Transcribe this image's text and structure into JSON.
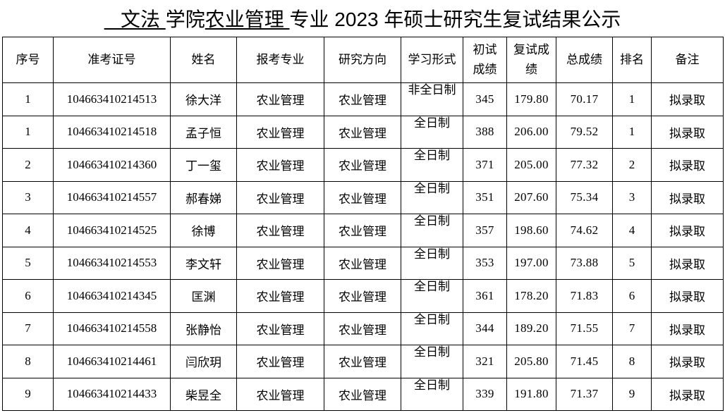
{
  "title": {
    "college": "   文法 ",
    "college_suffix": "学院",
    "major": "农业管理 ",
    "rest": "专业 2023 年硕士研究生复试结果公示"
  },
  "table": {
    "headers": [
      "序号",
      "准考证号",
      "姓名",
      "报考专业",
      "研究方向",
      "学习形式",
      "初试成绩",
      "复试成绩",
      "总成绩",
      "排名",
      "备注"
    ],
    "rows": [
      [
        "1",
        "104663410214513",
        "徐大洋",
        "农业管理",
        "农业管理",
        "非全日制",
        "345",
        "179.80",
        "70.17",
        "1",
        "拟录取"
      ],
      [
        "1",
        "104663410214518",
        "孟子恒",
        "农业管理",
        "农业管理",
        "全日制",
        "388",
        "206.00",
        "79.52",
        "1",
        "拟录取"
      ],
      [
        "2",
        "104663410214360",
        "丁一玺",
        "农业管理",
        "农业管理",
        "全日制",
        "371",
        "205.00",
        "77.32",
        "2",
        "拟录取"
      ],
      [
        "3",
        "104663410214557",
        "郝春娣",
        "农业管理",
        "农业管理",
        "全日制",
        "351",
        "207.60",
        "75.34",
        "3",
        "拟录取"
      ],
      [
        "4",
        "104663410214525",
        "徐博",
        "农业管理",
        "农业管理",
        "全日制",
        "357",
        "198.60",
        "74.62",
        "4",
        "拟录取"
      ],
      [
        "5",
        "104663410214553",
        "李文轩",
        "农业管理",
        "农业管理",
        "全日制",
        "353",
        "197.00",
        "73.88",
        "5",
        "拟录取"
      ],
      [
        "6",
        "104663410214345",
        "匡渊",
        "农业管理",
        "农业管理",
        "全日制",
        "361",
        "178.20",
        "71.83",
        "6",
        "拟录取"
      ],
      [
        "7",
        "104663410214558",
        "张静怡",
        "农业管理",
        "农业管理",
        "全日制",
        "344",
        "189.20",
        "71.55",
        "7",
        "拟录取"
      ],
      [
        "8",
        "104663410214461",
        "闫欣玥",
        "农业管理",
        "农业管理",
        "全日制",
        "321",
        "205.80",
        "71.45",
        "8",
        "拟录取"
      ],
      [
        "9",
        "104663410214433",
        "柴昱全",
        "农业管理",
        "农业管理",
        "全日制",
        "339",
        "191.80",
        "71.37",
        "9",
        "拟录取"
      ]
    ]
  }
}
